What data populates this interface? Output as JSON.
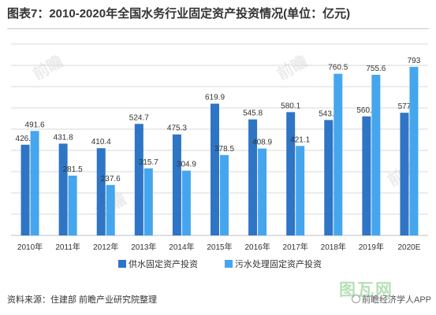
{
  "title": "图表7：2010-2020年全国水务行业固定资产投资情况(单位：亿元)",
  "source": "资料来源：住建部 前瞻产业研究院整理",
  "brand": "前瞻经济学人APP",
  "site_mark": "图瓦网",
  "watermark": "前瞻",
  "colors": {
    "series1": "#2e75c5",
    "series2": "#45a6ee",
    "grid": "#d9d9d9",
    "axis": "#bfbfbf"
  },
  "chart_data": {
    "type": "bar",
    "categories": [
      "2010年",
      "2011年",
      "2012年",
      "2013年",
      "2014年",
      "2015年",
      "2016年",
      "2017年",
      "2018年",
      "2019年",
      "2020E"
    ],
    "series": [
      {
        "name": "供水固定资产投资",
        "values": [
          426.8,
          431.8,
          410.4,
          524.7,
          475.3,
          619.9,
          545.8,
          580.1,
          543.0,
          560.1,
          577
        ]
      },
      {
        "name": "污水处理固定资产投资",
        "values": [
          491.6,
          281.5,
          237.6,
          315.7,
          304.9,
          378.5,
          408.9,
          421.1,
          760.5,
          755.6,
          793
        ]
      }
    ],
    "labels": [
      [
        "426.8",
        "431.8",
        "410.4",
        "524.7",
        "475.3",
        "619.9",
        "545.8",
        "580.1",
        "543.0",
        "560.1",
        "577"
      ],
      [
        "491.6",
        "281.5",
        "237.6",
        "315.7",
        "304.9",
        "378.5",
        "408.9",
        "421.1",
        "760.5",
        "755.6",
        "793"
      ]
    ],
    "ylim": [
      0,
      900
    ],
    "grid": true,
    "legend_position": "bottom"
  }
}
